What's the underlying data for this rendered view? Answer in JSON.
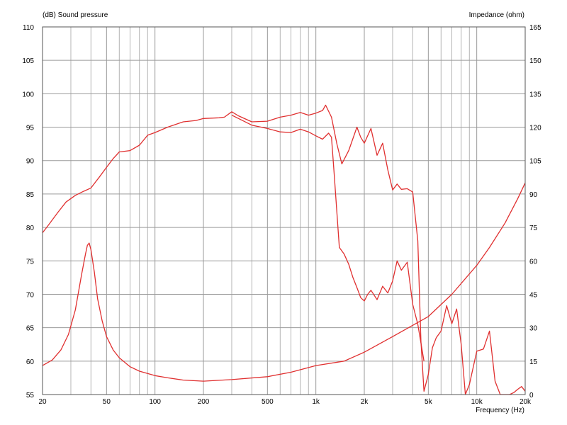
{
  "chart_data": {
    "type": "line",
    "left_axis_label": "(dB)  Sound pressure",
    "right_axis_label": "Impedance  (ohm)",
    "xlabel": "Frequency  (Hz)",
    "x_scale": "log",
    "xlim": [
      20,
      20000
    ],
    "ylim": [
      55,
      110
    ],
    "y2lim": [
      0,
      165
    ],
    "grid": true,
    "line_color": "#e03030",
    "x_ticks": [
      20,
      50,
      100,
      200,
      500,
      1000,
      2000,
      5000,
      10000,
      20000
    ],
    "x_tick_labels": [
      "20",
      "50",
      "100",
      "200",
      "500",
      "1k",
      "2k",
      "5k",
      "10k",
      "20k"
    ],
    "y_ticks": [
      55,
      60,
      65,
      70,
      75,
      80,
      85,
      90,
      95,
      100,
      105,
      110
    ],
    "y_tick_labels": [
      "55",
      "60",
      "65",
      "70",
      "75",
      "80",
      "85",
      "90",
      "95",
      "100",
      "105",
      "110"
    ],
    "y2_ticks": [
      0,
      15,
      30,
      45,
      60,
      75,
      90,
      105,
      120,
      135,
      150,
      165
    ],
    "y2_tick_labels": [
      "0",
      "15",
      "30",
      "45",
      "60",
      "75",
      "90",
      "105",
      "120",
      "135",
      "150",
      "165"
    ],
    "series": [
      {
        "axis": "left",
        "x": [
          20,
          22,
          25,
          28,
          32,
          36,
          40,
          45,
          50,
          55,
          60,
          70,
          80,
          90,
          100,
          120,
          150,
          180,
          200,
          250,
          270,
          300,
          330,
          400,
          500,
          600,
          700,
          800,
          900,
          1000,
          1100,
          1150,
          1250,
          1350,
          1450,
          1600,
          1800,
          1900,
          2000,
          2200,
          2400,
          2600,
          2800,
          3000,
          3200,
          3400,
          3700,
          4000,
          4300,
          4500,
          4700,
          5000,
          5300,
          5600,
          6000,
          6500,
          7000,
          7500,
          8000,
          8500,
          9000,
          10000,
          11000,
          12000,
          13000,
          14000,
          15000,
          16000,
          17000,
          18000,
          19000,
          20000
        ],
        "y": [
          79.2,
          80.5,
          82.3,
          83.8,
          84.8,
          85.4,
          85.9,
          87.5,
          89.0,
          90.3,
          91.3,
          91.5,
          92.3,
          93.8,
          94.2,
          95.0,
          95.8,
          96.0,
          96.3,
          96.4,
          96.5,
          97.3,
          96.7,
          95.8,
          95.9,
          96.5,
          96.8,
          97.2,
          96.8,
          97.1,
          97.5,
          98.3,
          96.5,
          92.5,
          89.5,
          91.5,
          95.0,
          93.5,
          92.6,
          94.8,
          90.8,
          92.6,
          88.6,
          85.6,
          86.5,
          85.7,
          85.8,
          85.3,
          78.0,
          63.0,
          55.5,
          58.0,
          62.0,
          63.5,
          64.5,
          68.3,
          65.6,
          67.8,
          62.5,
          55.0,
          56.5,
          61.5,
          61.8,
          64.5,
          57.0,
          55.0,
          55.0,
          55.0,
          55.3,
          55.8,
          56.2,
          55.5
        ]
      },
      {
        "axis": "left",
        "x": [
          300,
          400,
          500,
          600,
          700,
          800,
          900,
          1000,
          1100,
          1200,
          1250,
          1300,
          1400,
          1500,
          1600,
          1700,
          1800,
          1900,
          2000,
          2100,
          2200,
          2400,
          2600,
          2800,
          3000,
          3200,
          3400,
          3700,
          4000,
          4300,
          4700
        ],
        "y": [
          96.8,
          95.3,
          94.8,
          94.3,
          94.2,
          94.7,
          94.3,
          93.7,
          93.2,
          94.1,
          93.5,
          88.0,
          77.0,
          76.0,
          74.5,
          72.5,
          71.0,
          69.5,
          69.0,
          70.0,
          70.6,
          69.2,
          71.2,
          70.2,
          72.0,
          75.0,
          73.6,
          74.8,
          68.5,
          65.5,
          60.0
        ]
      },
      {
        "axis": "right",
        "x": [
          20,
          23,
          26,
          29,
          32,
          35,
          37,
          38,
          39,
          40,
          42,
          44,
          47,
          50,
          55,
          60,
          70,
          80,
          100,
          120,
          150,
          200,
          300,
          500,
          700,
          1000,
          1500,
          2000,
          3000,
          5000,
          7000,
          10000,
          12000,
          15000,
          18000,
          20000
        ],
        "y": [
          13.0,
          15.5,
          20.0,
          27.0,
          38.0,
          54.0,
          63.0,
          67.0,
          68.0,
          65.0,
          55.0,
          43.0,
          33.0,
          26.0,
          20.0,
          16.5,
          12.5,
          10.5,
          8.5,
          7.5,
          6.5,
          6.0,
          6.7,
          8.0,
          10.0,
          13.0,
          15.0,
          19.0,
          26.0,
          35.0,
          45.0,
          58.0,
          66.0,
          77.0,
          88.0,
          95.0
        ]
      }
    ]
  }
}
